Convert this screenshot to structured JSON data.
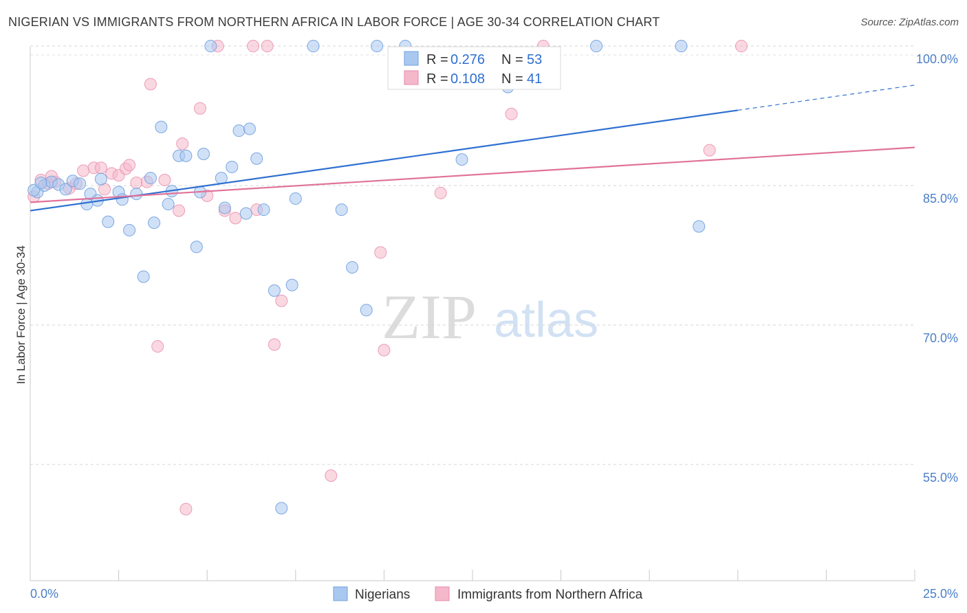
{
  "title": "NIGERIAN VS IMMIGRANTS FROM NORTHERN AFRICA IN LABOR FORCE | AGE 30-34 CORRELATION CHART",
  "source": "Source: ZipAtlas.com",
  "watermark": {
    "zip": "ZIP",
    "atlas": "atlas"
  },
  "colors": {
    "blue_fill": "#a9c8f0",
    "blue_line": "#2e6fd0",
    "pink_fill": "#f5b8cb",
    "pink_line": "#e0729a",
    "tick_text": "#4a7fc8"
  },
  "legend_top": [
    {
      "r_label": "R = ",
      "r_value": "0.276",
      "n_label": "N = ",
      "n_value": "53"
    },
    {
      "r_label": "R = ",
      "r_value": "0.108",
      "n_label": "N = ",
      "n_value": "41"
    }
  ],
  "chart_data": {
    "type": "scatter",
    "title": "NIGERIAN VS IMMIGRANTS FROM NORTHERN AFRICA IN LABOR FORCE | AGE 30-34 CORRELATION CHART",
    "xlabel": "",
    "ylabel": "In Labor Force | Age 30-34",
    "xlim": [
      0,
      25
    ],
    "ylim": [
      42.5,
      102
    ],
    "x_tick_labels": [
      "0.0%",
      "25.0%"
    ],
    "y_ticks": [
      55,
      70,
      85,
      100
    ],
    "y_tick_labels": [
      "55.0%",
      "70.0%",
      "85.0%",
      "100.0%"
    ],
    "series": [
      {
        "name": "Nigerians",
        "color": "#a9c8f0",
        "stroke": "#2e6fd0",
        "trend": {
          "x0": 0,
          "y0": 82.3,
          "x1": 20,
          "y1": 93.1,
          "x_end_dashed": 25,
          "y_end_dashed": 95.8
        },
        "points": [
          [
            0.2,
            84.3
          ],
          [
            0.4,
            85.0
          ],
          [
            0.6,
            85.4
          ],
          [
            0.8,
            85.1
          ],
          [
            1.0,
            84.6
          ],
          [
            1.2,
            85.5
          ],
          [
            1.6,
            83.0
          ],
          [
            1.7,
            84.1
          ],
          [
            1.9,
            83.4
          ],
          [
            2.0,
            85.7
          ],
          [
            2.2,
            81.1
          ],
          [
            2.5,
            84.3
          ],
          [
            2.6,
            83.5
          ],
          [
            2.8,
            80.2
          ],
          [
            3.0,
            84.1
          ],
          [
            3.2,
            75.2
          ],
          [
            3.4,
            85.8
          ],
          [
            3.5,
            81.0
          ],
          [
            3.7,
            91.3
          ],
          [
            3.9,
            83.0
          ],
          [
            4.0,
            84.4
          ],
          [
            4.2,
            88.2
          ],
          [
            4.4,
            88.2
          ],
          [
            4.7,
            78.4
          ],
          [
            4.8,
            84.3
          ],
          [
            4.9,
            88.4
          ],
          [
            5.1,
            100.0
          ],
          [
            5.4,
            85.8
          ],
          [
            5.5,
            82.6
          ],
          [
            5.7,
            87.0
          ],
          [
            5.9,
            90.9
          ],
          [
            6.1,
            82.0
          ],
          [
            6.2,
            91.1
          ],
          [
            6.4,
            87.9
          ],
          [
            6.6,
            82.4
          ],
          [
            6.9,
            73.7
          ],
          [
            7.1,
            50.3
          ],
          [
            7.4,
            74.3
          ],
          [
            7.5,
            83.6
          ],
          [
            8.0,
            100.0
          ],
          [
            8.8,
            82.4
          ],
          [
            9.1,
            76.2
          ],
          [
            9.5,
            71.6
          ],
          [
            9.8,
            100.0
          ],
          [
            10.6,
            100.0
          ],
          [
            12.2,
            87.8
          ],
          [
            13.5,
            95.6
          ],
          [
            16.0,
            100.0
          ],
          [
            18.4,
            100.0
          ],
          [
            18.9,
            80.6
          ],
          [
            0.1,
            84.5
          ],
          [
            0.3,
            85.3
          ],
          [
            1.4,
            85.2
          ]
        ]
      },
      {
        "name": "Immigrants from Northern Africa",
        "color": "#f5b8cb",
        "stroke": "#e0729a",
        "trend": {
          "x0": 0,
          "y0": 83.2,
          "x1": 25,
          "y1": 89.1
        },
        "points": [
          [
            0.1,
            83.8
          ],
          [
            0.3,
            85.6
          ],
          [
            0.5,
            85.2
          ],
          [
            0.7,
            85.4
          ],
          [
            1.1,
            84.7
          ],
          [
            1.3,
            85.2
          ],
          [
            1.5,
            86.6
          ],
          [
            1.8,
            86.9
          ],
          [
            2.0,
            86.9
          ],
          [
            2.1,
            84.6
          ],
          [
            2.3,
            86.3
          ],
          [
            2.5,
            86.1
          ],
          [
            2.7,
            86.8
          ],
          [
            2.8,
            87.2
          ],
          [
            3.0,
            85.3
          ],
          [
            3.3,
            85.4
          ],
          [
            3.4,
            95.9
          ],
          [
            3.6,
            67.7
          ],
          [
            3.8,
            85.6
          ],
          [
            4.2,
            82.3
          ],
          [
            4.3,
            89.5
          ],
          [
            4.4,
            50.2
          ],
          [
            4.8,
            93.3
          ],
          [
            5.0,
            83.9
          ],
          [
            5.3,
            100.0
          ],
          [
            5.5,
            82.3
          ],
          [
            5.8,
            81.5
          ],
          [
            6.3,
            100.0
          ],
          [
            6.4,
            82.4
          ],
          [
            6.7,
            100.0
          ],
          [
            6.9,
            67.9
          ],
          [
            7.1,
            72.6
          ],
          [
            8.5,
            53.8
          ],
          [
            9.9,
            77.8
          ],
          [
            10.0,
            67.3
          ],
          [
            11.6,
            84.2
          ],
          [
            13.6,
            92.7
          ],
          [
            14.5,
            100.0
          ],
          [
            19.2,
            88.8
          ],
          [
            20.1,
            100.0
          ],
          [
            0.6,
            86.0
          ]
        ]
      }
    ]
  },
  "bottom_legend": [
    "Nigerians",
    "Immigrants from Northern Africa"
  ]
}
